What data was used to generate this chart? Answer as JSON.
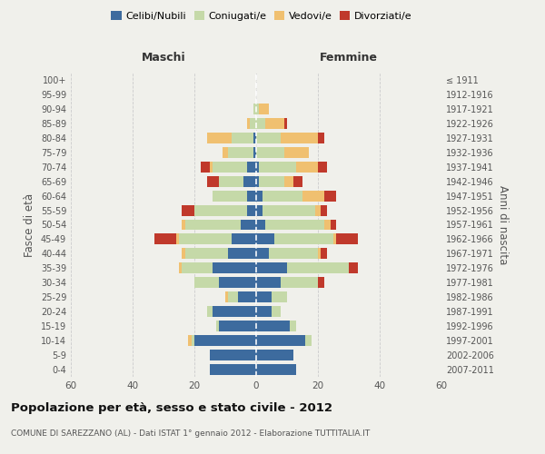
{
  "age_groups": [
    "0-4",
    "5-9",
    "10-14",
    "15-19",
    "20-24",
    "25-29",
    "30-34",
    "35-39",
    "40-44",
    "45-49",
    "50-54",
    "55-59",
    "60-64",
    "65-69",
    "70-74",
    "75-79",
    "80-84",
    "85-89",
    "90-94",
    "95-99",
    "100+"
  ],
  "birth_years": [
    "2007-2011",
    "2002-2006",
    "1997-2001",
    "1992-1996",
    "1987-1991",
    "1982-1986",
    "1977-1981",
    "1972-1976",
    "1967-1971",
    "1962-1966",
    "1957-1961",
    "1952-1956",
    "1947-1951",
    "1942-1946",
    "1937-1941",
    "1932-1936",
    "1927-1931",
    "1922-1926",
    "1917-1921",
    "1912-1916",
    "≤ 1911"
  ],
  "maschi": {
    "celibi": [
      15,
      15,
      20,
      12,
      14,
      6,
      12,
      14,
      9,
      8,
      5,
      3,
      3,
      4,
      3,
      1,
      1,
      0,
      0,
      0,
      0
    ],
    "coniugati": [
      0,
      0,
      1,
      1,
      2,
      3,
      8,
      10,
      14,
      17,
      18,
      17,
      11,
      8,
      11,
      8,
      7,
      2,
      1,
      0,
      0
    ],
    "vedovi": [
      0,
      0,
      1,
      0,
      0,
      1,
      0,
      1,
      1,
      1,
      1,
      0,
      0,
      0,
      1,
      2,
      8,
      1,
      0,
      0,
      0
    ],
    "divorziati": [
      0,
      0,
      0,
      0,
      0,
      0,
      0,
      0,
      0,
      7,
      0,
      4,
      0,
      4,
      3,
      0,
      0,
      0,
      0,
      0,
      0
    ]
  },
  "femmine": {
    "nubili": [
      13,
      12,
      16,
      11,
      5,
      5,
      8,
      10,
      4,
      6,
      3,
      2,
      2,
      1,
      1,
      0,
      0,
      0,
      0,
      0,
      0
    ],
    "coniugate": [
      0,
      0,
      2,
      2,
      3,
      5,
      12,
      20,
      16,
      19,
      19,
      17,
      13,
      8,
      12,
      9,
      8,
      3,
      1,
      0,
      0
    ],
    "vedove": [
      0,
      0,
      0,
      0,
      0,
      0,
      0,
      0,
      1,
      1,
      2,
      2,
      7,
      3,
      7,
      8,
      12,
      6,
      3,
      0,
      0
    ],
    "divorziate": [
      0,
      0,
      0,
      0,
      0,
      0,
      2,
      3,
      2,
      7,
      2,
      2,
      4,
      3,
      3,
      0,
      2,
      1,
      0,
      0,
      0
    ]
  },
  "colors": {
    "celibi": "#3d6b9e",
    "coniugati": "#c5d9a8",
    "vedovi": "#f0c070",
    "divorziati": "#c0392b"
  },
  "title": "Popolazione per età, sesso e stato civile - 2012",
  "subtitle": "COMUNE DI SAREZZANO (AL) - Dati ISTAT 1° gennaio 2012 - Elaborazione TUTTITALIA.IT",
  "ylabel_left": "Fasce di età",
  "ylabel_right": "Anni di nascita",
  "xlabel_maschi": "Maschi",
  "xlabel_femmine": "Femmine",
  "xlim": 60,
  "background_color": "#f0f0eb",
  "grid_color": "#cccccc",
  "legend_labels": [
    "Celibi/Nubili",
    "Coniugati/e",
    "Vedovi/e",
    "Divorziati/e"
  ]
}
